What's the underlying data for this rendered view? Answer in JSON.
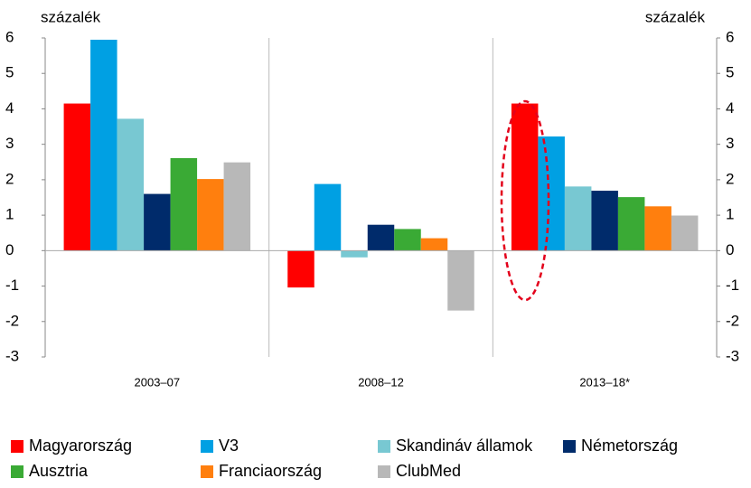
{
  "chart_data": {
    "type": "bar",
    "y_label": "százalék",
    "y2_label": "százalék",
    "categories": [
      "2003–07",
      "2008–12",
      "2013–18*"
    ],
    "series": [
      {
        "name": "Magyarország",
        "color": "#ff0000",
        "values": [
          4.15,
          -1.04,
          4.15
        ]
      },
      {
        "name": "V3",
        "color": "#00a0e3",
        "values": [
          5.95,
          1.88,
          3.22
        ]
      },
      {
        "name": "Skandináv államok",
        "color": "#78c8d2",
        "values": [
          3.72,
          -0.19,
          1.81
        ]
      },
      {
        "name": "Németország",
        "color": "#002b6b",
        "values": [
          1.6,
          0.73,
          1.69
        ]
      },
      {
        "name": "Ausztria",
        "color": "#3aaa35",
        "values": [
          2.61,
          0.61,
          1.51
        ]
      },
      {
        "name": "Franciaország",
        "color": "#ff7f0e",
        "values": [
          2.02,
          0.35,
          1.25
        ]
      },
      {
        "name": "ClubMed",
        "color": "#b8b8b8",
        "values": [
          2.49,
          -1.69,
          0.99
        ]
      }
    ],
    "ylim": [
      -3,
      6
    ],
    "yticks": [
      -3,
      -2,
      -1,
      0,
      1,
      2,
      3,
      4,
      5,
      6
    ],
    "y2lim": [
      -3,
      6
    ],
    "y2ticks": [
      -3,
      -2,
      -1,
      0,
      1,
      2,
      3,
      4,
      5,
      6
    ],
    "grid": false
  }
}
